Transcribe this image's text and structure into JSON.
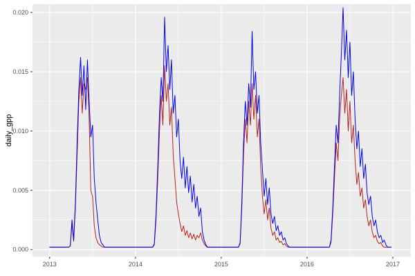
{
  "figure": {
    "background": "#FFFFFF"
  },
  "colors": {
    "panel_bg": "#EBEBEB",
    "grid": "#FFFFFF",
    "tick_text": "#4D4D4D",
    "tick_mark": "#333333",
    "axis_title": "#000000",
    "series_blue": "#0000EE",
    "series_red": "#B22222"
  },
  "chart_data": {
    "type": "line",
    "ylabel": "daily_gpp",
    "grid": "on",
    "legend": "none",
    "x_range": [
      2012.8,
      2017.21
    ],
    "y_range": [
      -0.0006,
      0.0207
    ],
    "x_ticks": {
      "values": [
        2013,
        2014,
        2015,
        2016,
        2017
      ],
      "labels": [
        "2013",
        "2014",
        "2015",
        "2016",
        "2017"
      ]
    },
    "y_ticks": {
      "values": [
        0.0,
        0.005,
        0.01,
        0.015,
        0.02
      ],
      "labels": [
        "0.000",
        "0.005",
        "0.010",
        "0.015",
        "0.020"
      ]
    },
    "x_minor": [
      2013.5,
      2014.5,
      2015.5,
      2016.5
    ],
    "y_minor": [
      0.0025,
      0.0075,
      0.0125,
      0.0175
    ],
    "x_start": 2013.0,
    "x_step": 0.02,
    "n_points": 200,
    "series": [
      {
        "name": "red",
        "color": "#B22222",
        "values": [
          0.0002,
          0.0002,
          0.0002,
          0.0002,
          0.0002,
          0.0002,
          0.0002,
          0.0002,
          0.0002,
          0.0002,
          0.0002,
          0.0002,
          0.0003,
          0.0022,
          0.0007,
          0.0035,
          0.008,
          0.0125,
          0.0145,
          0.0115,
          0.014,
          0.0135,
          0.0145,
          0.011,
          0.005,
          0.0045,
          0.002,
          0.001,
          0.0006,
          0.0004,
          0.0003,
          0.0002,
          0.0002,
          0.0002,
          0.0002,
          0.0002,
          0.0002,
          0.0002,
          0.0002,
          0.0002,
          0.0002,
          0.0002,
          0.0002,
          0.0002,
          0.0002,
          0.0002,
          0.0002,
          0.0002,
          0.0002,
          0.0002,
          0.0002,
          0.0002,
          0.0002,
          0.0002,
          0.0002,
          0.0002,
          0.0002,
          0.0002,
          0.0002,
          0.0002,
          0.0002,
          0.0004,
          0.0025,
          0.006,
          0.01,
          0.013,
          0.0105,
          0.0155,
          0.0125,
          0.014,
          0.0105,
          0.012,
          0.008,
          0.006,
          0.004,
          0.003,
          0.0022,
          0.0015,
          0.002,
          0.0012,
          0.0016,
          0.001,
          0.0014,
          0.0009,
          0.0013,
          0.0008,
          0.0012,
          0.001,
          0.0014,
          0.0008,
          0.0005,
          0.0003,
          0.0002,
          0.0002,
          0.0002,
          0.0002,
          0.0002,
          0.0002,
          0.0002,
          0.0002,
          0.0002,
          0.0002,
          0.0002,
          0.0002,
          0.0002,
          0.0002,
          0.0002,
          0.0002,
          0.0002,
          0.0002,
          0.0002,
          0.0005,
          0.0035,
          0.008,
          0.011,
          0.009,
          0.0125,
          0.0105,
          0.014,
          0.011,
          0.013,
          0.0095,
          0.011,
          0.007,
          0.0045,
          0.003,
          0.0042,
          0.0025,
          0.0035,
          0.0018,
          0.0012,
          0.0015,
          0.0008,
          0.001,
          0.0006,
          0.0007,
          0.0004,
          0.0005,
          0.0003,
          0.0002,
          0.0002,
          0.0002,
          0.0002,
          0.0002,
          0.0002,
          0.0002,
          0.0002,
          0.0002,
          0.0002,
          0.0002,
          0.0002,
          0.0002,
          0.0002,
          0.0002,
          0.0002,
          0.0002,
          0.0002,
          0.0002,
          0.0002,
          0.0002,
          0.0002,
          0.0002,
          0.0002,
          0.0002,
          0.0006,
          0.003,
          0.006,
          0.009,
          0.0075,
          0.011,
          0.013,
          0.0145,
          0.0115,
          0.0135,
          0.01,
          0.0125,
          0.009,
          0.0105,
          0.0075,
          0.0055,
          0.0065,
          0.0045,
          0.0052,
          0.0035,
          0.0042,
          0.0028,
          0.002,
          0.0025,
          0.0015,
          0.001,
          0.0012,
          0.0007,
          0.0005,
          0.0006,
          0.0003,
          0.0002,
          0.0002,
          0.0002,
          0.0002,
          0.0002
        ]
      },
      {
        "name": "blue",
        "color": "#0000EE",
        "values": [
          0.0002,
          0.0002,
          0.0002,
          0.0002,
          0.0002,
          0.0002,
          0.0002,
          0.0002,
          0.0002,
          0.0002,
          0.0002,
          0.0002,
          0.0003,
          0.0025,
          0.0008,
          0.004,
          0.009,
          0.0135,
          0.0162,
          0.013,
          0.0155,
          0.0118,
          0.016,
          0.0125,
          0.0095,
          0.0105,
          0.006,
          0.004,
          0.0025,
          0.0012,
          0.0006,
          0.0004,
          0.0002,
          0.0002,
          0.0002,
          0.0002,
          0.0002,
          0.0002,
          0.0002,
          0.0002,
          0.0002,
          0.0002,
          0.0002,
          0.0002,
          0.0002,
          0.0002,
          0.0002,
          0.0002,
          0.0002,
          0.0002,
          0.0002,
          0.0002,
          0.0002,
          0.0002,
          0.0002,
          0.0002,
          0.0002,
          0.0002,
          0.0002,
          0.0002,
          0.0002,
          0.0005,
          0.003,
          0.007,
          0.0115,
          0.0145,
          0.0125,
          0.0196,
          0.015,
          0.0172,
          0.0135,
          0.016,
          0.0115,
          0.013,
          0.0095,
          0.011,
          0.0075,
          0.006,
          0.0078,
          0.0052,
          0.007,
          0.0048,
          0.0062,
          0.004,
          0.0055,
          0.0035,
          0.0045,
          0.0028,
          0.0035,
          0.0015,
          0.0008,
          0.0004,
          0.0002,
          0.0002,
          0.0002,
          0.0002,
          0.0002,
          0.0002,
          0.0002,
          0.0002,
          0.0002,
          0.0002,
          0.0002,
          0.0002,
          0.0002,
          0.0002,
          0.0002,
          0.0002,
          0.0002,
          0.0002,
          0.0002,
          0.0006,
          0.004,
          0.009,
          0.0125,
          0.0105,
          0.014,
          0.012,
          0.0184,
          0.0135,
          0.015,
          0.0115,
          0.013,
          0.009,
          0.0068,
          0.0045,
          0.006,
          0.0038,
          0.0052,
          0.003,
          0.0022,
          0.0028,
          0.0016,
          0.002,
          0.0012,
          0.0015,
          0.0008,
          0.001,
          0.0005,
          0.0003,
          0.0002,
          0.0002,
          0.0002,
          0.0002,
          0.0002,
          0.0002,
          0.0002,
          0.0002,
          0.0002,
          0.0002,
          0.0002,
          0.0002,
          0.0002,
          0.0002,
          0.0002,
          0.0002,
          0.0002,
          0.0002,
          0.0002,
          0.0002,
          0.0002,
          0.0002,
          0.0002,
          0.0002,
          0.0008,
          0.0035,
          0.007,
          0.0105,
          0.009,
          0.013,
          0.0165,
          0.0204,
          0.016,
          0.0185,
          0.0145,
          0.0175,
          0.013,
          0.015,
          0.011,
          0.0085,
          0.01,
          0.007,
          0.0085,
          0.006,
          0.0072,
          0.0048,
          0.0038,
          0.0045,
          0.0028,
          0.002,
          0.0025,
          0.0015,
          0.001,
          0.0012,
          0.0006,
          0.0008,
          0.0004,
          0.0002,
          0.0002,
          0.0002
        ]
      }
    ]
  }
}
